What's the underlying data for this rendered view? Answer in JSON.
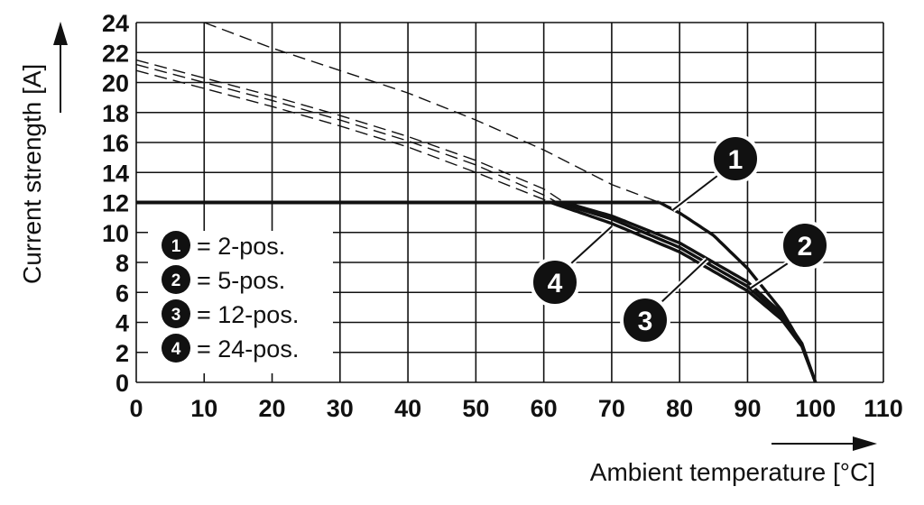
{
  "chart_data": {
    "type": "line",
    "xlabel": "Ambient temperature [°C]",
    "ylabel": "Current strength [A]",
    "xlim": [
      0,
      110
    ],
    "ylim": [
      0,
      24
    ],
    "x_ticks": [
      "0",
      "10",
      "20",
      "30",
      "40",
      "50",
      "60",
      "70",
      "80",
      "90",
      "100",
      "110"
    ],
    "y_ticks": [
      "0",
      "2",
      "4",
      "6",
      "8",
      "10",
      "12",
      "14",
      "16",
      "18",
      "20",
      "22",
      "24"
    ],
    "grid": true,
    "legend_position": "bottom-left",
    "legend": [
      {
        "num": "1",
        "text": "= 2-pos."
      },
      {
        "num": "2",
        "text": "= 5-pos."
      },
      {
        "num": "3",
        "text": "= 12-pos."
      },
      {
        "num": "4",
        "text": "= 24-pos."
      }
    ],
    "current_limit": {
      "x": [
        0,
        77
      ],
      "y": [
        12,
        12
      ]
    },
    "series": [
      {
        "num": "1",
        "x": [
          10,
          20,
          30,
          40,
          50,
          60,
          70,
          77,
          80,
          85,
          90,
          95,
          98,
          100
        ],
        "y": [
          24,
          22.3,
          20.8,
          19.3,
          17.5,
          15.5,
          13.2,
          12,
          11.3,
          9.8,
          7.6,
          4.8,
          2.5,
          0
        ],
        "derated_from_x": 77
      },
      {
        "num": "2",
        "x": [
          0,
          10,
          20,
          30,
          40,
          50,
          60,
          63,
          70,
          80,
          90,
          95,
          98,
          100
        ],
        "y": [
          21.5,
          20.3,
          19.1,
          17.8,
          16.4,
          14.8,
          12.9,
          12,
          11.1,
          9.3,
          6.7,
          4.6,
          2.6,
          0
        ],
        "derated_from_x": 63
      },
      {
        "num": "3",
        "x": [
          0,
          10,
          20,
          30,
          40,
          50,
          60,
          62,
          70,
          80,
          90,
          95,
          98,
          100
        ],
        "y": [
          21.2,
          20,
          18.8,
          17.5,
          16.1,
          14.5,
          12.5,
          12,
          10.9,
          9,
          6.4,
          4.4,
          2.5,
          0
        ],
        "derated_from_x": 62
      },
      {
        "num": "4",
        "x": [
          0,
          10,
          20,
          30,
          40,
          50,
          60,
          61,
          70,
          80,
          90,
          95,
          98,
          100
        ],
        "y": [
          20.8,
          19.6,
          18.4,
          17.1,
          15.7,
          14,
          12.2,
          12,
          10.6,
          8.7,
          6.1,
          4.2,
          2.4,
          0
        ],
        "derated_from_x": 61
      }
    ],
    "callouts": [
      {
        "num": "1",
        "target_x": 79,
        "target_y": 11.5
      },
      {
        "num": "2",
        "target_x": 90.5,
        "target_y": 6.3
      },
      {
        "num": "3",
        "target_x": 84,
        "target_y": 8.2
      },
      {
        "num": "4",
        "target_x": 70,
        "target_y": 10.4
      }
    ]
  }
}
